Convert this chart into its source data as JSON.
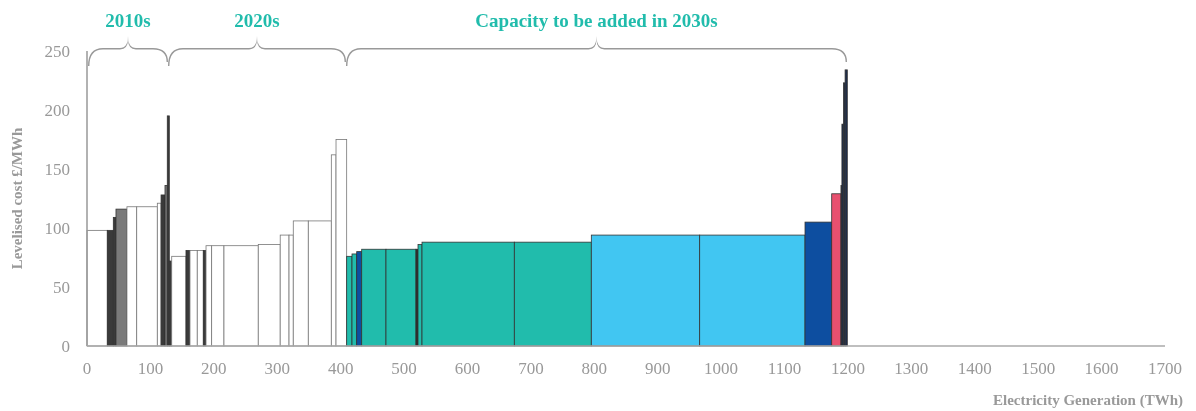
{
  "chart_data": {
    "type": "histogram",
    "xlabel": "Electricity Generation (TWh)",
    "ylabel": "Levelised cost £/MWh",
    "bins": [
      0,
      32,
      41.5,
      45.7,
      63,
      78.4,
      110.9,
      116.8,
      123,
      126.6,
      129.8,
      133.6,
      156.1,
      162.4,
      173.9,
      183.4,
      187.7,
      196.6,
      216,
      270.1,
      304.7,
      318.6,
      325.3,
      349,
      385.3,
      392.7,
      409.5,
      417.9,
      425.3,
      433.2,
      471.5,
      518.8,
      522,
      528.3,
      673.9,
      795.3,
      966.2,
      1132.3,
      1174.4,
      1189,
      1190.5,
      1193,
      1195.5,
      1199
    ],
    "values": [
      98,
      98,
      109,
      116,
      118,
      118,
      121,
      128,
      136,
      195,
      72,
      76,
      81,
      81,
      81,
      81,
      85,
      85,
      85,
      86,
      94,
      94,
      106,
      106,
      162,
      175,
      76,
      78,
      80,
      82,
      82,
      82,
      86,
      88,
      88,
      94,
      94,
      105,
      129,
      136,
      188,
      223,
      234
    ],
    "colors": [
      "#ffffff",
      "#3a3a3a",
      "#3a3a3a",
      "#7a7a7a",
      "#ffffff",
      "#ffffff",
      "#ffffff",
      "#3a3a3a",
      "#7a7a7a",
      "#3a3a3a",
      "#3a3a3a",
      "#ffffff",
      "#3a3a3a",
      "#ffffff",
      "#ffffff",
      "#3a3a3a",
      "#ffffff",
      "#ffffff",
      "#ffffff",
      "#ffffff",
      "#ffffff",
      "#ffffff",
      "#ffffff",
      "#ffffff",
      "#ffffff",
      "#ffffff",
      "#21bcac",
      "#21bcac",
      "#0d4ea0",
      "#21bcac",
      "#21bcac",
      "#2a2a2a",
      "#21bcac",
      "#21bcac",
      "#21bcac",
      "#41c6f2",
      "#41c6f2",
      "#0d4ea0",
      "#e8506f",
      "#1e2d4a",
      "#1e2d4a",
      "#1e2d4a",
      "#1e2d4a"
    ],
    "xlim": [
      0,
      1700
    ],
    "xticks": [
      0,
      100,
      200,
      300,
      400,
      500,
      600,
      700,
      800,
      900,
      1000,
      1100,
      1200,
      1300,
      1400,
      1500,
      1600,
      1700
    ],
    "ylim": [
      0,
      250
    ],
    "yticks": [
      0,
      50,
      100,
      150,
      200,
      250
    ],
    "annotations": [
      "2010s",
      "2020s",
      "Capacity to be added in 2030s"
    ],
    "grid": false
  }
}
